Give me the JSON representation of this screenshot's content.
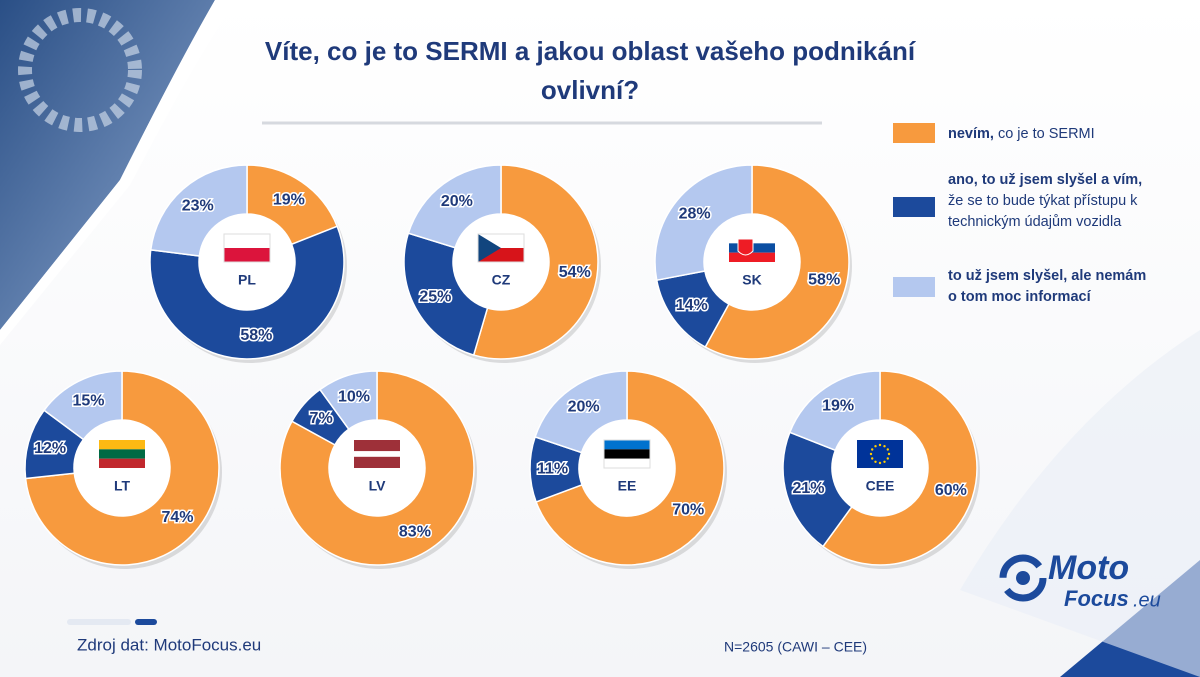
{
  "title": [
    "Víte, co je to SERMI a jakou oblast vašeho podnikání",
    "ovlivní?"
  ],
  "legend": [
    {
      "bold": "nevím,",
      "text": "co je to SERMI",
      "color": "#f79a3e"
    },
    {
      "bold": "ano, to už jsem slyšel a vím,",
      "text": "že se to bude týkat přístupu k technickým údajům vozidla",
      "color": "#1c4a9c"
    },
    {
      "bold": "to už jsem slyšel, ale nemám o tom moc informací",
      "color": "#b4c8ef"
    }
  ],
  "chart_data": [
    {
      "type": "donut",
      "label": "PL",
      "values": [
        19,
        58,
        23
      ],
      "value_labels": [
        "19%",
        "58%",
        "23%"
      ]
    },
    {
      "type": "donut",
      "label": "CZ",
      "values": [
        54,
        25,
        20
      ],
      "value_labels": [
        "54%",
        "25%",
        "20%"
      ]
    },
    {
      "type": "donut",
      "label": "SK",
      "values": [
        58,
        14,
        28
      ],
      "value_labels": [
        "58%",
        "14%",
        "28%"
      ]
    },
    {
      "type": "donut",
      "label": "LT",
      "values": [
        74,
        12,
        15
      ],
      "value_labels": [
        "74%",
        "12%",
        "15%"
      ]
    },
    {
      "type": "donut",
      "label": "LV",
      "values": [
        83,
        7,
        10
      ],
      "value_labels": [
        "83%",
        "7%",
        "10%"
      ]
    },
    {
      "type": "donut",
      "label": "EE",
      "values": [
        70,
        11,
        20
      ],
      "value_labels": [
        "70%",
        "11%",
        "20%"
      ]
    },
    {
      "type": "donut",
      "label": "CEE",
      "values": [
        60,
        21,
        19
      ],
      "value_labels": [
        "60%",
        "21%",
        "19%"
      ]
    }
  ],
  "source": "Zdroj dat: MotoFocus.eu",
  "note": "N=2605 (CAWI – CEE)",
  "logo": {
    "moto": "Moto",
    "focus": "Focus",
    "eu": ".eu"
  }
}
